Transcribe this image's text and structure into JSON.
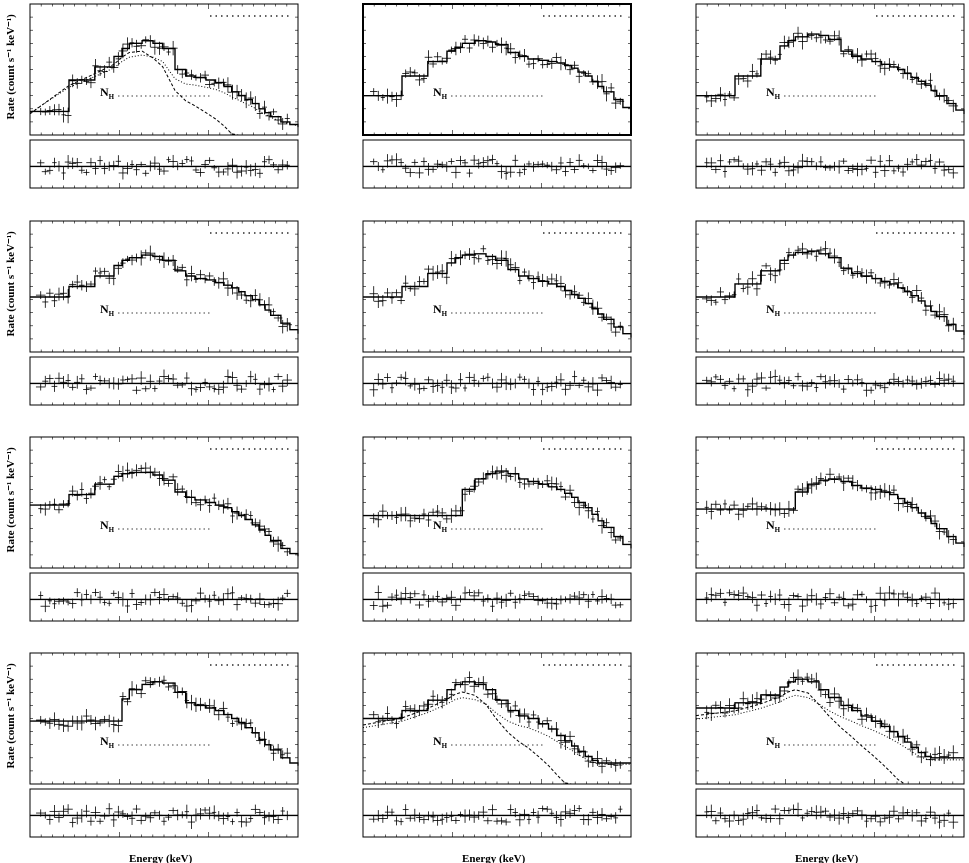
{
  "figure": {
    "ylabel": "Rate (count s⁻¹ keV⁻¹)",
    "xlabel": "Energy (keV)",
    "nh_label": "N",
    "nh_sub": "H"
  },
  "chart_data": [
    {
      "type": "line",
      "row": 0,
      "col": 0,
      "model": "two-component",
      "x": [
        0.3,
        0.5,
        0.7,
        0.9,
        1.0,
        1.1,
        1.3,
        1.5,
        1.7,
        2.0,
        2.3,
        2.6,
        3.0,
        3.4,
        3.8,
        4.2,
        4.6,
        5.0,
        5.5,
        6.0,
        6.5,
        7.0,
        8.0,
        9.0,
        10.0
      ],
      "y": [
        0.18,
        0.42,
        0.52,
        0.6,
        0.66,
        0.7,
        0.72,
        0.7,
        0.66,
        0.5,
        0.45,
        0.44,
        0.42,
        0.4,
        0.37,
        0.33,
        0.3,
        0.27,
        0.24,
        0.2,
        0.17,
        0.14,
        0.1,
        0.08,
        0.06
      ]
    },
    {
      "type": "line",
      "row": 0,
      "col": 1,
      "model": "single",
      "x": [
        0.3,
        0.5,
        0.7,
        0.9,
        1.0,
        1.1,
        1.3,
        1.5,
        1.7,
        2.0,
        2.3,
        2.6,
        3.0,
        3.4,
        3.8,
        4.2,
        4.6,
        5.0,
        5.5,
        6.0,
        6.5,
        7.0,
        8.0,
        9.0,
        10.0
      ],
      "y": [
        0.3,
        0.45,
        0.56,
        0.64,
        0.67,
        0.7,
        0.72,
        0.71,
        0.69,
        0.63,
        0.6,
        0.58,
        0.57,
        0.56,
        0.55,
        0.53,
        0.51,
        0.48,
        0.45,
        0.41,
        0.37,
        0.33,
        0.27,
        0.21,
        0.18
      ]
    },
    {
      "type": "line",
      "row": 0,
      "col": 2,
      "model": "single",
      "x": [
        0.3,
        0.5,
        0.7,
        0.9,
        1.0,
        1.1,
        1.3,
        1.5,
        1.7,
        2.0,
        2.3,
        2.6,
        3.0,
        3.4,
        3.8,
        4.2,
        4.6,
        5.0,
        5.5,
        6.0,
        6.5,
        7.0,
        8.0,
        9.0,
        10.0
      ],
      "y": [
        0.3,
        0.45,
        0.58,
        0.68,
        0.72,
        0.75,
        0.77,
        0.76,
        0.73,
        0.64,
        0.6,
        0.58,
        0.56,
        0.54,
        0.52,
        0.5,
        0.47,
        0.44,
        0.41,
        0.38,
        0.34,
        0.3,
        0.24,
        0.19,
        0.16
      ]
    },
    {
      "type": "line",
      "row": 1,
      "col": 0,
      "model": "single",
      "x": [
        0.3,
        0.5,
        0.7,
        0.9,
        1.0,
        1.1,
        1.3,
        1.5,
        1.7,
        2.0,
        2.3,
        2.6,
        3.0,
        3.4,
        3.8,
        4.2,
        4.6,
        5.0,
        5.5,
        6.0,
        6.5,
        7.0,
        8.0,
        9.0,
        10.0
      ],
      "y": [
        0.42,
        0.5,
        0.58,
        0.66,
        0.7,
        0.72,
        0.74,
        0.73,
        0.7,
        0.62,
        0.58,
        0.56,
        0.55,
        0.53,
        0.51,
        0.49,
        0.46,
        0.43,
        0.4,
        0.36,
        0.32,
        0.28,
        0.22,
        0.17,
        0.14
      ]
    },
    {
      "type": "line",
      "row": 1,
      "col": 1,
      "model": "single",
      "x": [
        0.3,
        0.5,
        0.7,
        0.9,
        1.0,
        1.1,
        1.3,
        1.5,
        1.7,
        2.0,
        2.3,
        2.6,
        3.0,
        3.4,
        3.8,
        4.2,
        4.6,
        5.0,
        5.5,
        6.0,
        6.5,
        7.0,
        8.0,
        9.0,
        10.0
      ],
      "y": [
        0.42,
        0.5,
        0.6,
        0.68,
        0.72,
        0.74,
        0.75,
        0.73,
        0.7,
        0.63,
        0.58,
        0.56,
        0.54,
        0.52,
        0.5,
        0.47,
        0.44,
        0.41,
        0.37,
        0.33,
        0.29,
        0.25,
        0.19,
        0.14,
        0.11
      ]
    },
    {
      "type": "line",
      "row": 1,
      "col": 2,
      "model": "single",
      "x": [
        0.3,
        0.5,
        0.7,
        0.9,
        1.0,
        1.1,
        1.3,
        1.5,
        1.7,
        2.0,
        2.3,
        2.6,
        3.0,
        3.4,
        3.8,
        4.2,
        4.6,
        5.0,
        5.5,
        6.0,
        6.5,
        7.0,
        8.0,
        9.0,
        10.0
      ],
      "y": [
        0.42,
        0.52,
        0.62,
        0.7,
        0.74,
        0.76,
        0.77,
        0.75,
        0.72,
        0.64,
        0.6,
        0.58,
        0.56,
        0.54,
        0.52,
        0.49,
        0.46,
        0.43,
        0.39,
        0.35,
        0.31,
        0.27,
        0.21,
        0.16,
        0.13
      ]
    },
    {
      "type": "line",
      "row": 2,
      "col": 0,
      "model": "single",
      "x": [
        0.3,
        0.5,
        0.7,
        0.9,
        1.0,
        1.1,
        1.3,
        1.5,
        1.7,
        2.0,
        2.3,
        2.6,
        3.0,
        3.4,
        3.8,
        4.2,
        4.6,
        5.0,
        5.5,
        6.0,
        6.5,
        7.0,
        8.0,
        9.0,
        10.0
      ],
      "y": [
        0.48,
        0.56,
        0.64,
        0.7,
        0.72,
        0.73,
        0.73,
        0.71,
        0.67,
        0.58,
        0.54,
        0.52,
        0.5,
        0.48,
        0.46,
        0.43,
        0.4,
        0.37,
        0.33,
        0.29,
        0.25,
        0.21,
        0.15,
        0.11,
        0.09
      ]
    },
    {
      "type": "line",
      "row": 2,
      "col": 1,
      "model": "single",
      "x": [
        0.3,
        0.5,
        0.7,
        0.9,
        1.0,
        1.1,
        1.3,
        1.5,
        1.7,
        2.0,
        2.3,
        2.6,
        3.0,
        3.4,
        3.8,
        4.2,
        4.6,
        5.0,
        5.5,
        6.0,
        6.5,
        7.0,
        8.0,
        9.0,
        10.0
      ],
      "y": [
        0.4,
        0.4,
        0.4,
        0.4,
        0.4,
        0.6,
        0.68,
        0.72,
        0.74,
        0.72,
        0.68,
        0.66,
        0.64,
        0.62,
        0.6,
        0.57,
        0.54,
        0.5,
        0.46,
        0.41,
        0.36,
        0.31,
        0.24,
        0.18,
        0.15
      ]
    },
    {
      "type": "line",
      "row": 2,
      "col": 2,
      "model": "single",
      "x": [
        0.3,
        0.5,
        0.7,
        0.9,
        1.0,
        1.1,
        1.3,
        1.5,
        1.7,
        2.0,
        2.3,
        2.6,
        3.0,
        3.4,
        3.8,
        4.2,
        4.6,
        5.0,
        5.5,
        6.0,
        6.5,
        7.0,
        8.0,
        9.0,
        10.0
      ],
      "y": [
        0.45,
        0.45,
        0.45,
        0.45,
        0.45,
        0.58,
        0.64,
        0.67,
        0.68,
        0.66,
        0.63,
        0.61,
        0.6,
        0.58,
        0.56,
        0.53,
        0.5,
        0.46,
        0.42,
        0.38,
        0.34,
        0.3,
        0.24,
        0.19,
        0.16
      ]
    },
    {
      "type": "line",
      "row": 3,
      "col": 0,
      "model": "single",
      "x": [
        0.3,
        0.5,
        0.7,
        0.9,
        1.0,
        1.1,
        1.3,
        1.5,
        1.7,
        2.0,
        2.3,
        2.6,
        3.0,
        3.4,
        3.8,
        4.2,
        4.6,
        5.0,
        5.5,
        6.0,
        6.5,
        7.0,
        8.0,
        9.0,
        10.0
      ],
      "y": [
        0.48,
        0.48,
        0.48,
        0.48,
        0.65,
        0.72,
        0.76,
        0.78,
        0.77,
        0.7,
        0.62,
        0.6,
        0.58,
        0.56,
        0.53,
        0.5,
        0.47,
        0.43,
        0.39,
        0.34,
        0.3,
        0.26,
        0.2,
        0.16,
        0.14
      ]
    },
    {
      "type": "line",
      "row": 3,
      "col": 1,
      "model": "two-component",
      "x": [
        0.3,
        0.5,
        0.7,
        0.9,
        1.0,
        1.1,
        1.3,
        1.5,
        1.7,
        2.0,
        2.3,
        2.6,
        3.0,
        3.4,
        3.8,
        4.2,
        4.6,
        5.0,
        5.5,
        6.0,
        6.5,
        7.0,
        8.0,
        9.0,
        10.0
      ],
      "y": [
        0.5,
        0.56,
        0.64,
        0.72,
        0.76,
        0.78,
        0.76,
        0.72,
        0.64,
        0.56,
        0.52,
        0.5,
        0.46,
        0.42,
        0.37,
        0.33,
        0.29,
        0.25,
        0.21,
        0.18,
        0.16,
        0.16,
        0.16,
        0.16,
        0.16
      ]
    },
    {
      "type": "line",
      "row": 3,
      "col": 2,
      "model": "two-component",
      "x": [
        0.3,
        0.5,
        0.7,
        0.9,
        1.0,
        1.1,
        1.3,
        1.5,
        1.7,
        2.0,
        2.3,
        2.6,
        3.0,
        3.4,
        3.8,
        4.2,
        4.6,
        5.0,
        5.5,
        6.0,
        6.5,
        7.0,
        8.0,
        9.0,
        10.0
      ],
      "y": [
        0.58,
        0.62,
        0.68,
        0.74,
        0.78,
        0.8,
        0.78,
        0.72,
        0.66,
        0.6,
        0.56,
        0.52,
        0.48,
        0.44,
        0.4,
        0.36,
        0.32,
        0.28,
        0.24,
        0.21,
        0.2,
        0.2,
        0.2,
        0.2,
        0.2
      ]
    }
  ]
}
